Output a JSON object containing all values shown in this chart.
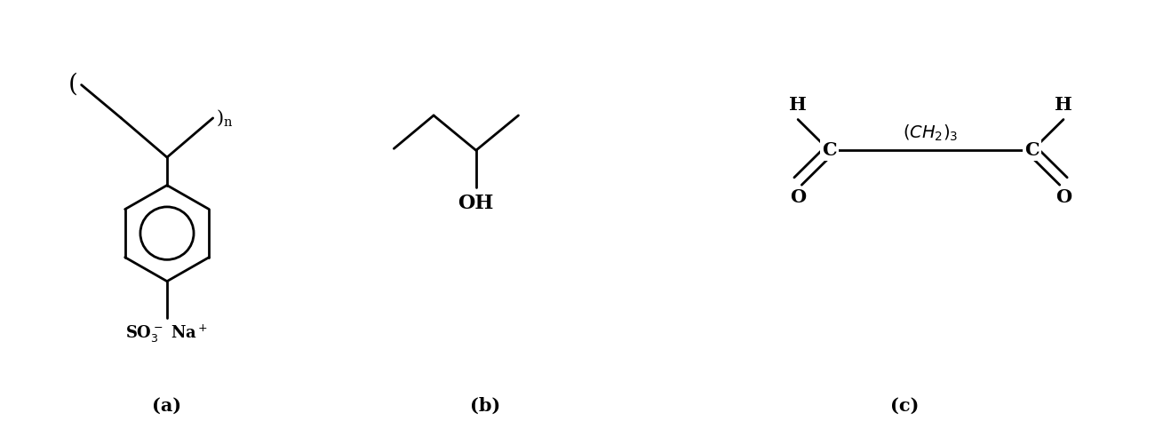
{
  "bg_color": "#ffffff",
  "line_color": "#000000",
  "line_width": 2.0,
  "font_size": 13,
  "label_font_size": 15,
  "fig_width": 13.18,
  "fig_height": 4.83,
  "label_a": "(a)",
  "label_b": "(b)",
  "label_c": "(c)"
}
